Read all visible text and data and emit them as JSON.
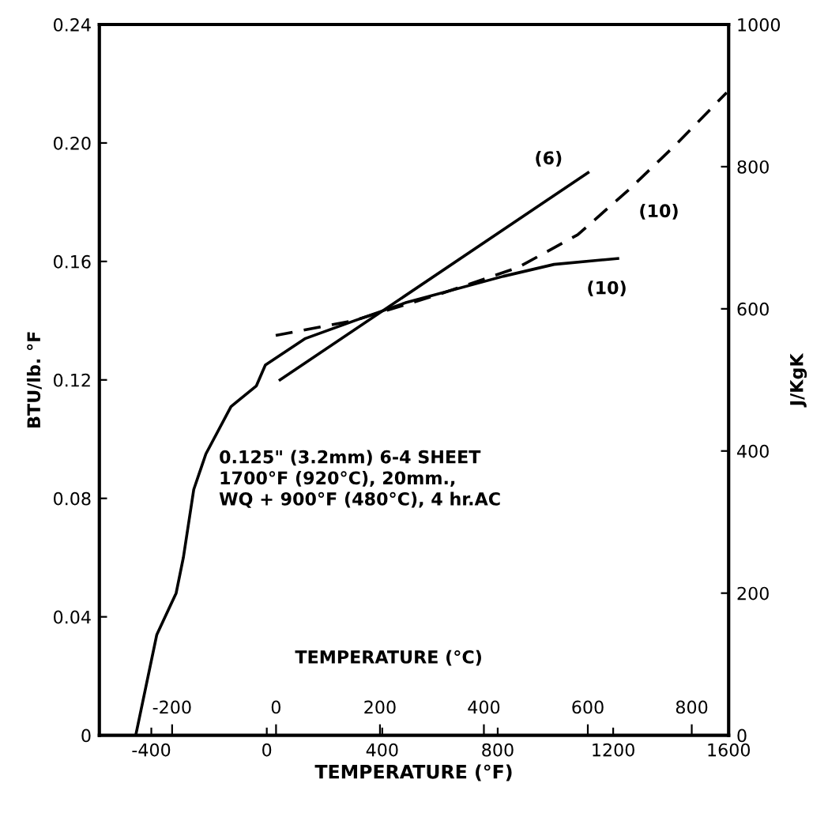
{
  "chart_data": {
    "type": "line",
    "xlabel": "TEMPERATURE (°F)",
    "ylabel": "BTU/lb. °F",
    "y2label": "J/KgK",
    "x2label": "TEMPERATURE (°C)",
    "xlim": [
      -580,
      1600
    ],
    "xticks": [
      -400,
      0,
      400,
      800,
      1200,
      1600
    ],
    "ylim": [
      0,
      0.24
    ],
    "yticks": [
      0,
      0.04,
      0.08,
      0.12,
      0.16,
      {
        "value": 0.2,
        "label": "0.20"
      },
      0.24
    ],
    "y2lim": [
      0,
      1000
    ],
    "y2ticks": [
      0,
      200,
      400,
      600,
      800,
      1000
    ],
    "x2lim": [
      -340,
      871
    ],
    "x2ticks": [
      -200,
      0,
      200,
      400,
      600,
      800
    ],
    "series": [
      {
        "name": "(10)",
        "color": "#000000",
        "line_style": "solid",
        "x": [
          -454,
          -381,
          -314,
          -289,
          -253,
          -211,
          -124,
          -36,
          -5,
          134,
          304,
          479,
          820,
          995,
          1216
        ],
        "values": [
          0,
          0.034,
          0.048,
          0.06,
          0.083,
          0.095,
          0.111,
          0.118,
          0.125,
          0.134,
          0.14,
          0.146,
          0.155,
          0.159,
          0.161
        ]
      },
      {
        "name": "(6)",
        "color": "#000000",
        "line_style": "solid",
        "x": [
          46,
          1113
        ],
        "values": [
          0.12,
          0.19
        ]
      },
      {
        "name": "(10)",
        "color": "#000000",
        "line_style": "dashed",
        "x": [
          31,
          300,
          600,
          871,
          1077,
          1252,
          1423,
          1593
        ],
        "values": [
          0.135,
          0.14,
          0.149,
          0.158,
          0.169,
          0.184,
          0.2,
          0.217
        ]
      }
    ],
    "annotations": [
      "0.125\" (3.2mm) 6-4 SHEET\n1700°F (920°C), 20mm.,\nWQ + 900°F (480°C), 4 hr.AC"
    ],
    "grid": false,
    "legend": false,
    "marker": "none"
  }
}
